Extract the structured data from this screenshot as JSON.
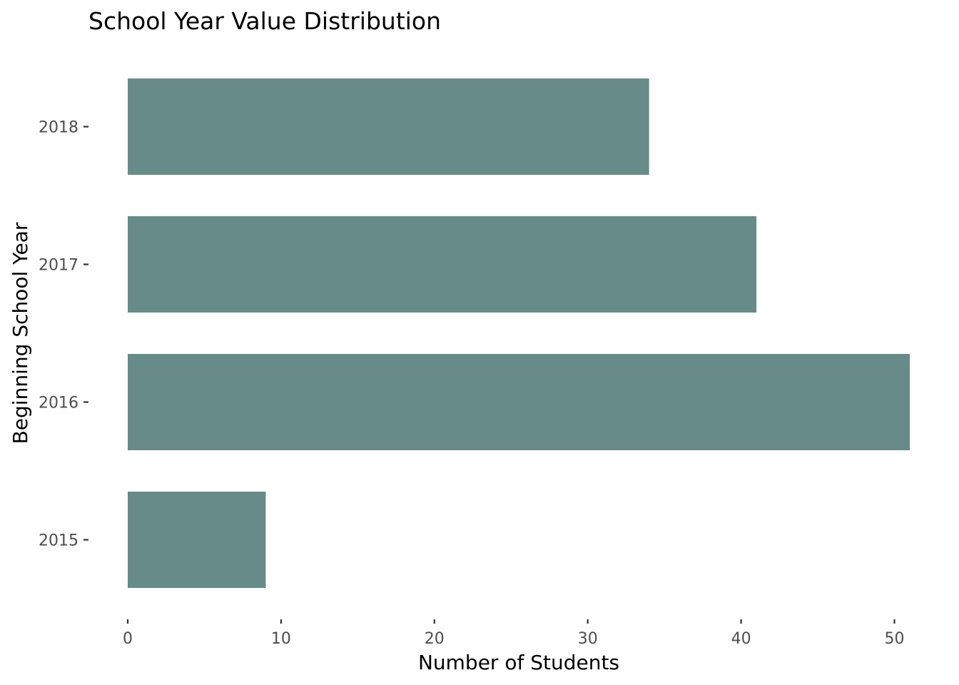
{
  "chart_data": {
    "type": "bar",
    "orientation": "horizontal",
    "title": "School Year Value Distribution",
    "xlabel": "Number of Students",
    "ylabel": "Beginning School Year",
    "categories": [
      "2015",
      "2016",
      "2017",
      "2018"
    ],
    "values": [
      9,
      51,
      41,
      34
    ],
    "xlim": [
      0,
      51
    ],
    "xticks": [
      0,
      10,
      20,
      30,
      40,
      50
    ],
    "xtick_labels": [
      "0",
      "10",
      "20",
      "30",
      "40",
      "50"
    ],
    "grid": false,
    "bar_color": "#668b88"
  }
}
